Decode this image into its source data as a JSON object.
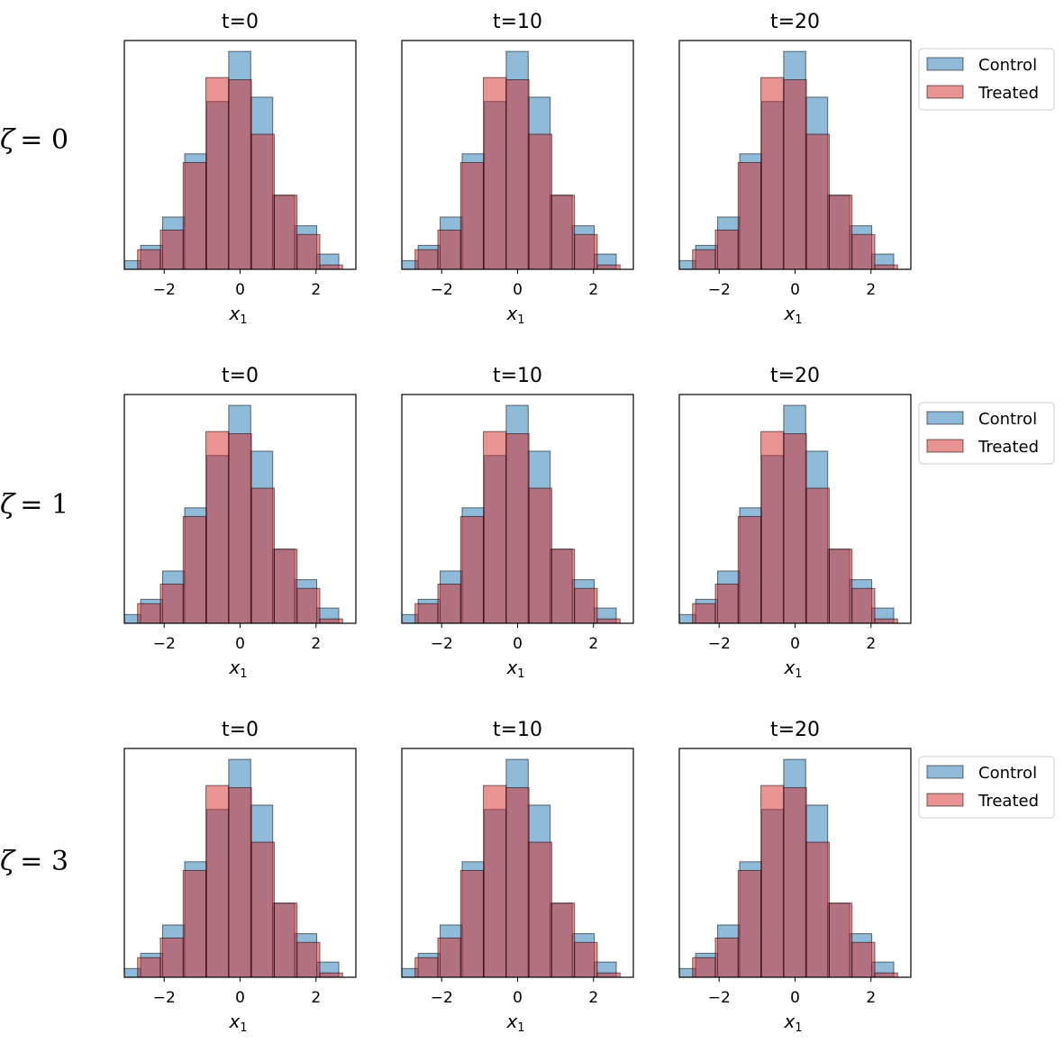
{
  "chart_data": {
    "type": "bar",
    "description_type": "histogram grid",
    "colors": {
      "control": "#1f77b4",
      "treated": "#d62728"
    },
    "x_ticks": [
      -2,
      0,
      2
    ],
    "x_tick_labels": [
      "−2",
      "0",
      "2"
    ],
    "xlim": [
      -3.05,
      3.05
    ],
    "xlabel": "x",
    "xlabel_sub": "1",
    "legend": {
      "control_label": "Control",
      "treated_label": "Treated",
      "placement": "right"
    },
    "rows": [
      {
        "symbol": "ζ",
        "label_value": "= 0",
        "panels": [
          {
            "title": "t=0",
            "control": {
              "edges": [
                -3.2,
                -2.62,
                -2.04,
                -1.46,
                -0.88,
                -0.3,
                0.28,
                0.86,
                1.44,
                2.02,
                2.6,
                3.18
              ],
              "counts": [
                4,
                11,
                24,
                53,
                77,
                100,
                79,
                34,
                20,
                7,
                0
              ]
            },
            "treated": {
              "edges": [
                -2.7,
                -2.1,
                -1.5,
                -0.9,
                -0.3,
                0.3,
                0.9,
                1.5,
                2.1,
                2.7
              ],
              "counts": [
                9,
                18,
                49,
                88,
                87,
                62,
                34,
                16,
                2
              ]
            }
          },
          {
            "title": "t=10",
            "control": {
              "edges": [
                -3.2,
                -2.62,
                -2.04,
                -1.46,
                -0.88,
                -0.3,
                0.28,
                0.86,
                1.44,
                2.02,
                2.6,
                3.18
              ],
              "counts": [
                4,
                11,
                24,
                53,
                77,
                100,
                79,
                34,
                20,
                7,
                0
              ]
            },
            "treated": {
              "edges": [
                -2.7,
                -2.1,
                -1.5,
                -0.9,
                -0.3,
                0.3,
                0.9,
                1.5,
                2.1,
                2.7
              ],
              "counts": [
                9,
                18,
                49,
                88,
                87,
                62,
                34,
                16,
                2
              ]
            }
          },
          {
            "title": "t=20",
            "control": {
              "edges": [
                -3.2,
                -2.62,
                -2.04,
                -1.46,
                -0.88,
                -0.3,
                0.28,
                0.86,
                1.44,
                2.02,
                2.6,
                3.18
              ],
              "counts": [
                4,
                11,
                24,
                53,
                77,
                100,
                79,
                34,
                20,
                7,
                0
              ]
            },
            "treated": {
              "edges": [
                -2.7,
                -2.1,
                -1.5,
                -0.9,
                -0.3,
                0.3,
                0.9,
                1.5,
                2.1,
                2.7
              ],
              "counts": [
                9,
                18,
                49,
                88,
                87,
                62,
                34,
                16,
                2
              ]
            }
          }
        ]
      },
      {
        "symbol": "ζ",
        "label_value": "= 1",
        "panels": [
          {
            "title": "t=0",
            "control": {
              "edges": [
                -3.2,
                -2.62,
                -2.04,
                -1.46,
                -0.88,
                -0.3,
                0.28,
                0.86,
                1.44,
                2.02,
                2.6,
                3.18
              ],
              "counts": [
                4,
                11,
                24,
                53,
                77,
                100,
                79,
                34,
                20,
                7,
                0
              ]
            },
            "treated": {
              "edges": [
                -2.7,
                -2.1,
                -1.5,
                -0.9,
                -0.3,
                0.3,
                0.9,
                1.5,
                2.1,
                2.7
              ],
              "counts": [
                9,
                18,
                49,
                88,
                87,
                62,
                34,
                16,
                2
              ]
            }
          },
          {
            "title": "t=10",
            "control": {
              "edges": [
                -3.2,
                -2.62,
                -2.04,
                -1.46,
                -0.88,
                -0.3,
                0.28,
                0.86,
                1.44,
                2.02,
                2.6,
                3.18
              ],
              "counts": [
                4,
                11,
                24,
                53,
                77,
                100,
                79,
                34,
                20,
                7,
                0
              ]
            },
            "treated": {
              "edges": [
                -2.7,
                -2.1,
                -1.5,
                -0.9,
                -0.3,
                0.3,
                0.9,
                1.5,
                2.1,
                2.7
              ],
              "counts": [
                9,
                18,
                49,
                88,
                87,
                62,
                34,
                16,
                2
              ]
            }
          },
          {
            "title": "t=20",
            "control": {
              "edges": [
                -3.2,
                -2.62,
                -2.04,
                -1.46,
                -0.88,
                -0.3,
                0.28,
                0.86,
                1.44,
                2.02,
                2.6,
                3.18
              ],
              "counts": [
                4,
                11,
                24,
                53,
                77,
                100,
                79,
                34,
                20,
                7,
                0
              ]
            },
            "treated": {
              "edges": [
                -2.7,
                -2.1,
                -1.5,
                -0.9,
                -0.3,
                0.3,
                0.9,
                1.5,
                2.1,
                2.7
              ],
              "counts": [
                9,
                18,
                49,
                88,
                87,
                62,
                34,
                16,
                2
              ]
            }
          }
        ]
      },
      {
        "symbol": "ζ",
        "label_value": "= 3",
        "panels": [
          {
            "title": "t=0",
            "control": {
              "edges": [
                -3.2,
                -2.62,
                -2.04,
                -1.46,
                -0.88,
                -0.3,
                0.28,
                0.86,
                1.44,
                2.02,
                2.6,
                3.18
              ],
              "counts": [
                4,
                11,
                24,
                53,
                77,
                100,
                79,
                34,
                20,
                7,
                0
              ]
            },
            "treated": {
              "edges": [
                -2.7,
                -2.1,
                -1.5,
                -0.9,
                -0.3,
                0.3,
                0.9,
                1.5,
                2.1,
                2.7
              ],
              "counts": [
                9,
                18,
                49,
                88,
                87,
                62,
                34,
                16,
                2
              ]
            }
          },
          {
            "title": "t=10",
            "control": {
              "edges": [
                -3.2,
                -2.62,
                -2.04,
                -1.46,
                -0.88,
                -0.3,
                0.28,
                0.86,
                1.44,
                2.02,
                2.6,
                3.18
              ],
              "counts": [
                4,
                11,
                24,
                53,
                77,
                100,
                79,
                34,
                20,
                7,
                0
              ]
            },
            "treated": {
              "edges": [
                -2.7,
                -2.1,
                -1.5,
                -0.9,
                -0.3,
                0.3,
                0.9,
                1.5,
                2.1,
                2.7
              ],
              "counts": [
                9,
                18,
                49,
                88,
                87,
                62,
                34,
                16,
                2
              ]
            }
          },
          {
            "title": "t=20",
            "control": {
              "edges": [
                -3.2,
                -2.62,
                -2.04,
                -1.46,
                -0.88,
                -0.3,
                0.28,
                0.86,
                1.44,
                2.02,
                2.6,
                3.18
              ],
              "counts": [
                4,
                11,
                24,
                53,
                77,
                100,
                79,
                34,
                20,
                7,
                0
              ]
            },
            "treated": {
              "edges": [
                -2.7,
                -2.1,
                -1.5,
                -0.9,
                -0.3,
                0.3,
                0.9,
                1.5,
                2.1,
                2.7
              ],
              "counts": [
                9,
                18,
                49,
                88,
                87,
                62,
                34,
                16,
                2
              ]
            }
          }
        ]
      }
    ]
  }
}
